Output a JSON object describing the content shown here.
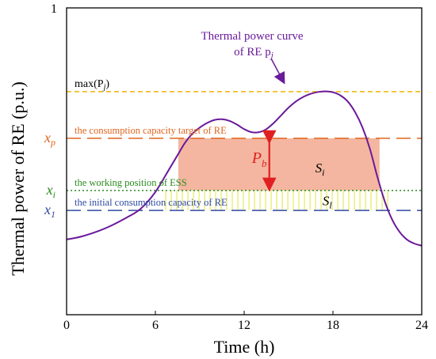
{
  "chart_data": {
    "type": "line",
    "xlabel": "Time (h)",
    "ylabel": "Thermal power  of RE (p.u.)",
    "xlim": [
      0,
      24
    ],
    "ylim": [
      0,
      1
    ],
    "x_ticks": [
      "0",
      "6",
      "12",
      "18",
      "24"
    ],
    "y_ticks": [
      "1"
    ],
    "grid": false,
    "curve_label": [
      "Thermal power curve",
      "of RE p"
    ],
    "curve_label_sub": "j",
    "curve_color": "#6a1a9a",
    "curve": {
      "x": [
        0,
        1,
        2,
        3,
        4,
        5,
        6,
        7,
        7.5,
        8,
        8.5,
        9,
        9.5,
        10,
        10.5,
        11,
        11.5,
        12,
        12.5,
        13,
        13.5,
        14,
        14.5,
        15,
        15.5,
        16,
        16.5,
        17,
        17.5,
        18,
        18.5,
        19,
        19.5,
        20,
        20.5,
        21,
        21.5,
        22,
        22.5,
        23,
        23.5,
        24
      ],
      "y": [
        0.245,
        0.255,
        0.27,
        0.29,
        0.315,
        0.345,
        0.4,
        0.48,
        0.52,
        0.56,
        0.59,
        0.61,
        0.625,
        0.635,
        0.637,
        0.632,
        0.62,
        0.605,
        0.595,
        0.595,
        0.605,
        0.625,
        0.65,
        0.675,
        0.695,
        0.71,
        0.72,
        0.726,
        0.728,
        0.725,
        0.715,
        0.695,
        0.66,
        0.61,
        0.54,
        0.45,
        0.37,
        0.31,
        0.27,
        0.245,
        0.232,
        0.225
      ]
    },
    "reference_lines": [
      {
        "name": "max",
        "label": "max(P",
        "label_sub": "j",
        "label_tail": ")",
        "y": 0.727,
        "color": "#f0b400",
        "dash": "6,4"
      },
      {
        "name": "xp",
        "axis_label": "x",
        "axis_sub": "p",
        "label": "the consumption capacity target of RE",
        "y": 0.575,
        "color": "#e0651e",
        "dash": "18,8"
      },
      {
        "name": "xi",
        "axis_label": "x",
        "axis_sub": "i",
        "label": "the working position of ESS",
        "y": 0.405,
        "color": "#2a8a1e",
        "dash": "2,3"
      },
      {
        "name": "x1",
        "axis_label": "x",
        "axis_sub": "1",
        "label": "the initial consumption capacity of RE",
        "y": 0.34,
        "color": "#2e4aa0",
        "dash": "18,8"
      }
    ],
    "regions": [
      {
        "name": "Si",
        "label": "S",
        "sub": "i",
        "x": [
          7.55,
          21.15
        ],
        "y_from": 0.405,
        "y_to": 0.575,
        "color": "#f4b6a0"
      },
      {
        "name": "Sl",
        "label": "S",
        "sub": "l",
        "x": [
          6.7,
          21.8
        ],
        "y_from": 0.34,
        "y_to": 0.405,
        "color": "#e8e860"
      }
    ],
    "annotation": {
      "label": "P",
      "sub": "b",
      "x": 13.7,
      "y_from": 0.405,
      "y_to": 0.575,
      "color": "#e02020"
    }
  }
}
